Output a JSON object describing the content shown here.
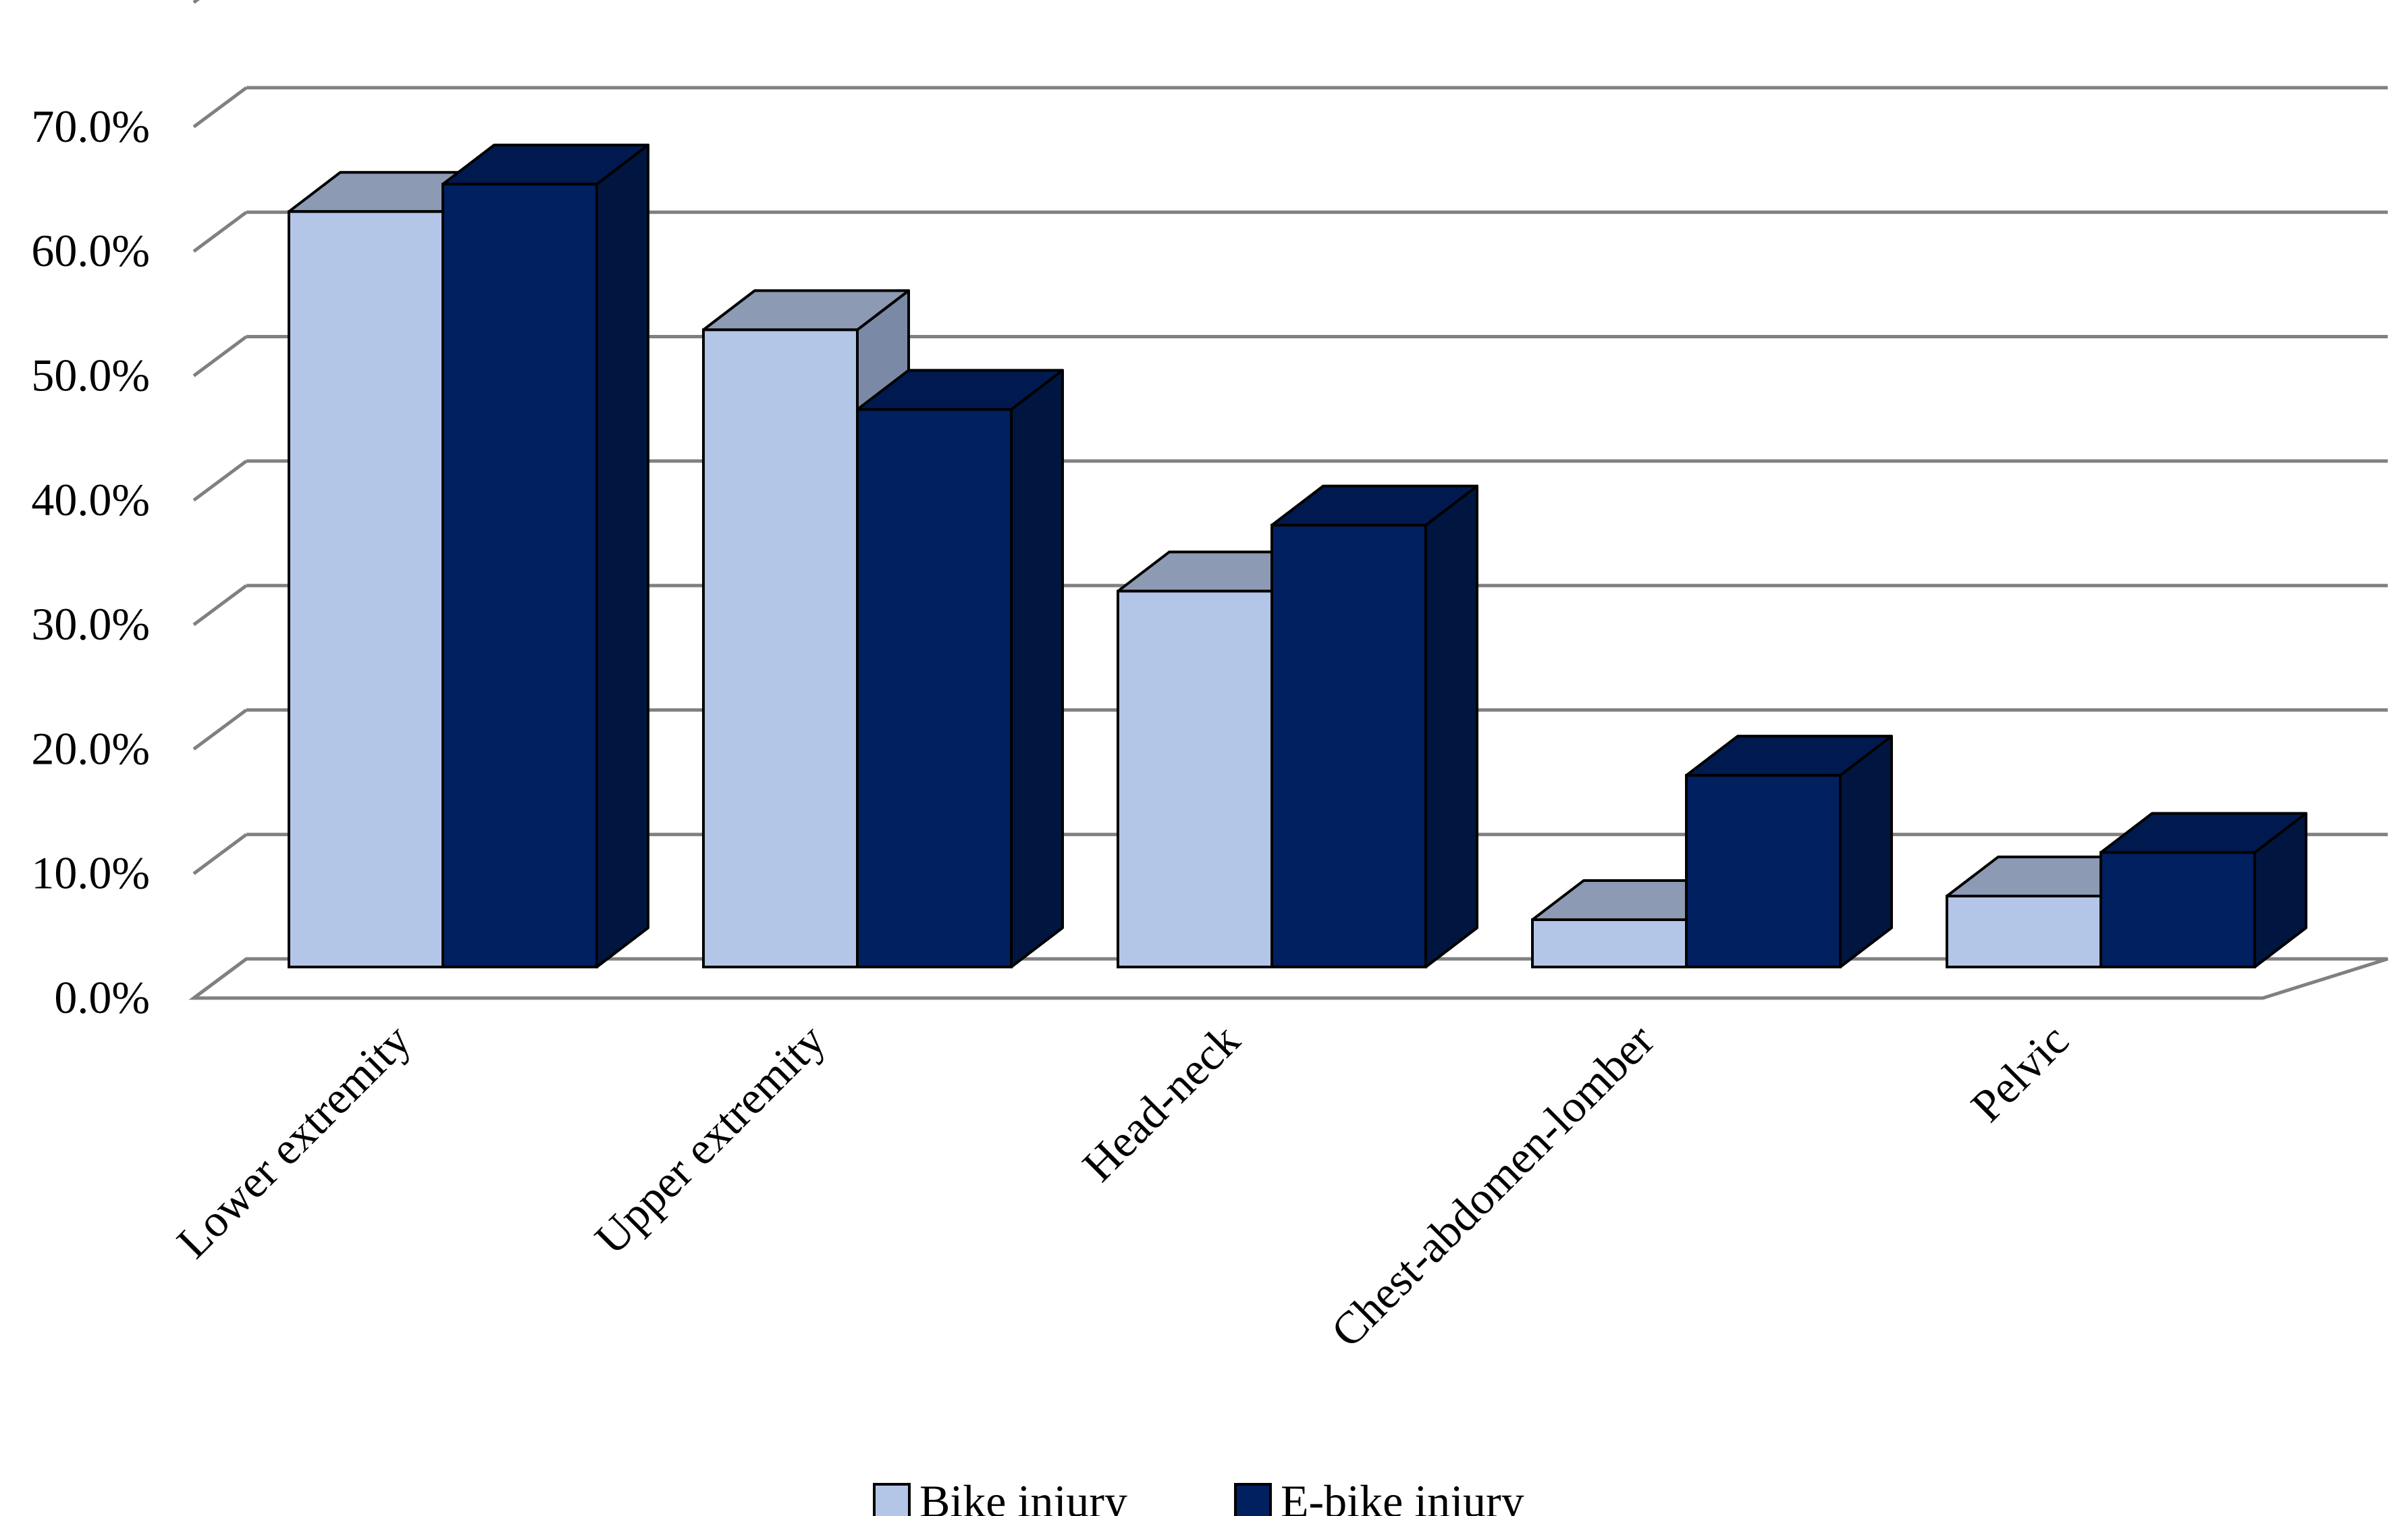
{
  "chart_data": {
    "type": "bar",
    "categories": [
      "Lower extremity",
      "Upper extremity",
      "Head-neck",
      "Chest-abdomen-lomber",
      "Pelvic"
    ],
    "series": [
      {
        "name": "Bike injury",
        "values": [
          60.7,
          51.2,
          30.2,
          3.8,
          5.7
        ],
        "color": "#b4c6e7",
        "top_color": "#8c9ab3",
        "side_color": "#7a8aa6"
      },
      {
        "name": "E-bike injury",
        "values": [
          62.9,
          44.8,
          35.5,
          15.4,
          9.2
        ],
        "color": "#002060",
        "top_color": "#001a50",
        "side_color": "#001640"
      }
    ],
    "yticks": [
      "0.0%",
      "10.0%",
      "20.0%",
      "30.0%",
      "40.0%",
      "50.0%",
      "60.0%",
      "70.0%"
    ],
    "ylim": [
      0,
      70
    ],
    "grid": true,
    "legend_position": "bottom",
    "gridline_color": "#808080"
  }
}
